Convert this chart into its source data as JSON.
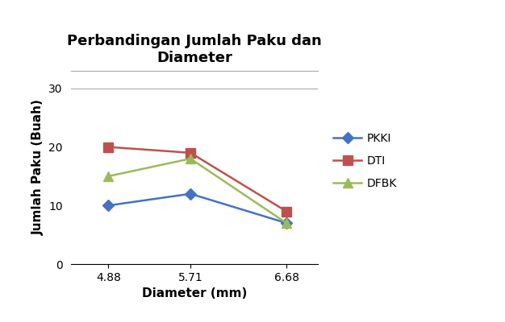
{
  "title": "Perbandingan Jumlah Paku dan\nDiameter",
  "xlabel": "Diameter (mm)",
  "ylabel": "Jumlah Paku (Buah)",
  "x_values": [
    4.88,
    5.71,
    6.68
  ],
  "x_tick_labels": [
    "4.88",
    "5.71",
    "6.68"
  ],
  "ylim": [
    0,
    33
  ],
  "yticks": [
    0,
    10,
    20,
    30
  ],
  "xlim": [
    4.5,
    7.0
  ],
  "series": [
    {
      "label": "PKKI",
      "values": [
        10,
        12,
        7
      ],
      "color": "#4472C4",
      "marker": "D",
      "markersize": 7
    },
    {
      "label": "DTI",
      "values": [
        20,
        19,
        9
      ],
      "color": "#C0504D",
      "marker": "s",
      "markersize": 8
    },
    {
      "label": "DFBK",
      "values": [
        15,
        18,
        7
      ],
      "color": "#9BBB59",
      "marker": "^",
      "markersize": 8
    }
  ],
  "title_fontsize": 13,
  "axis_label_fontsize": 11,
  "tick_fontsize": 10,
  "legend_fontsize": 10,
  "background_color": "#ffffff"
}
